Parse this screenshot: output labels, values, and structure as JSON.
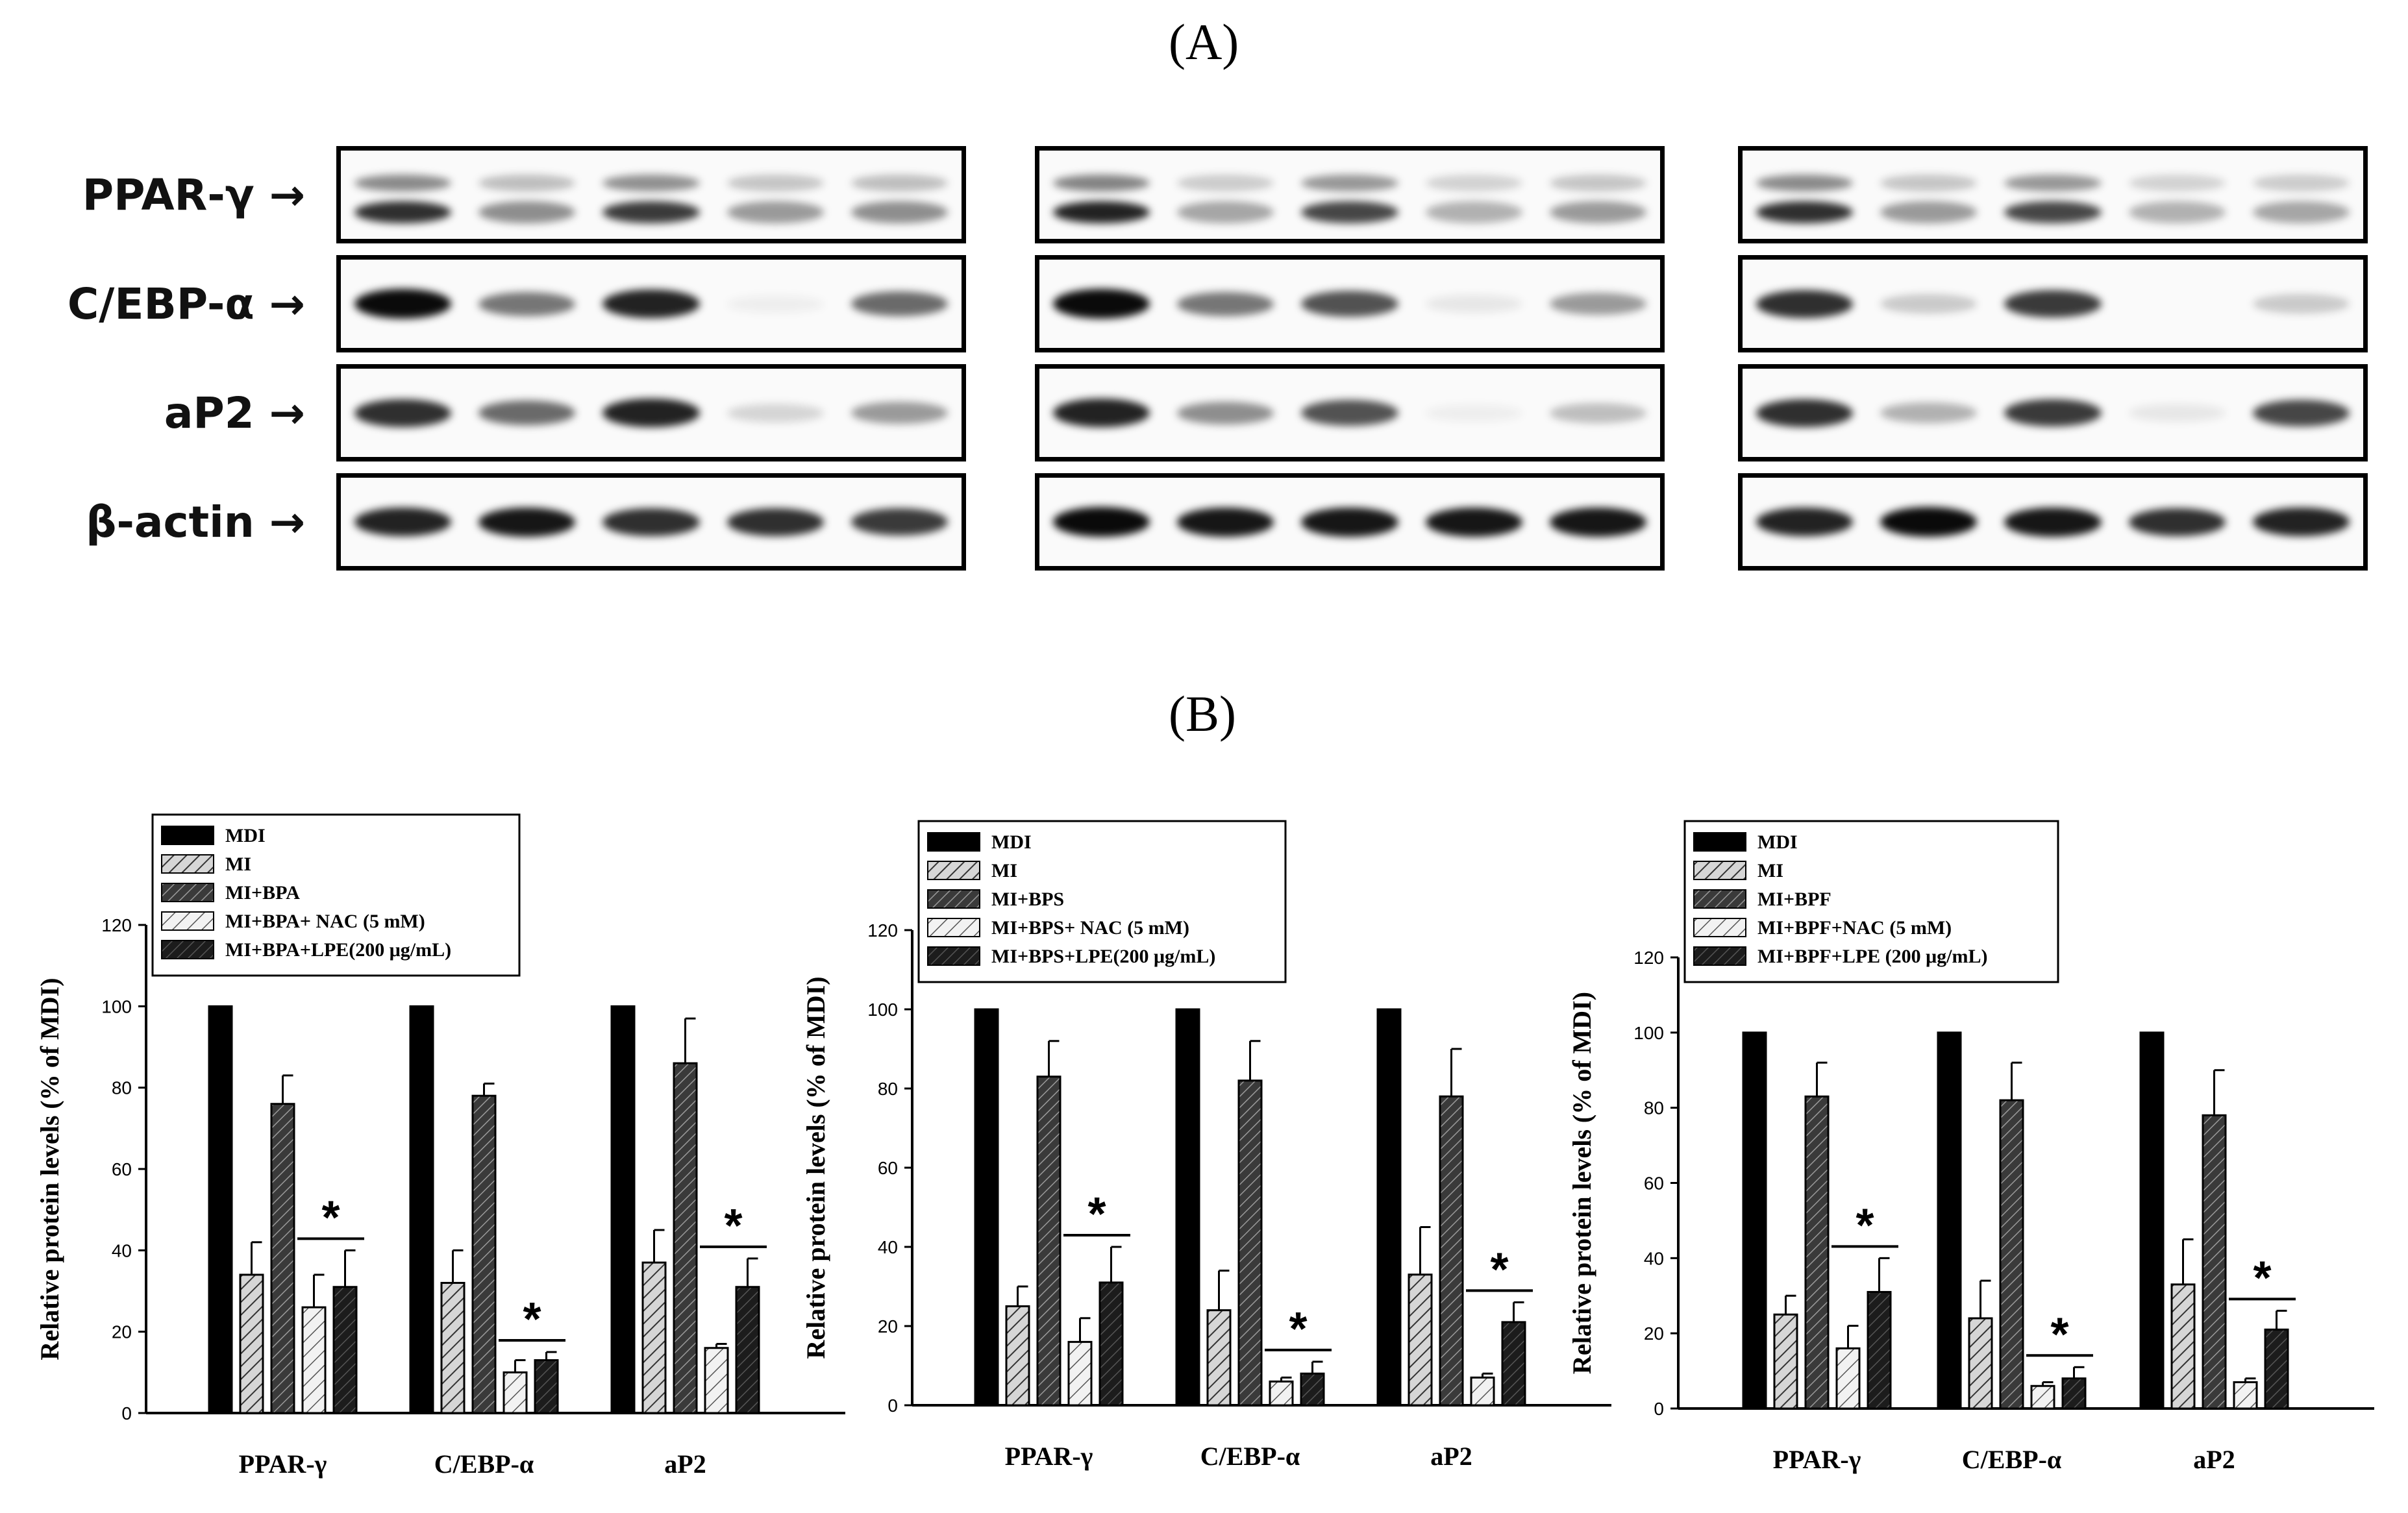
{
  "panels": {
    "a": "(A)",
    "b": "(B)"
  },
  "blot_rows": [
    "PPAR-γ →",
    "C/EBP-α →",
    "aP2 →",
    "β-actin →"
  ],
  "band_intensity": [
    [
      [
        0.85,
        0.45,
        0.8,
        0.4,
        0.45
      ],
      [
        0.9,
        0.35,
        0.75,
        0.3,
        0.4
      ],
      [
        0.85,
        0.4,
        0.75,
        0.3,
        0.35
      ]
    ],
    [
      [
        1.0,
        0.55,
        0.9,
        0.05,
        0.6
      ],
      [
        1.0,
        0.55,
        0.7,
        0.08,
        0.4
      ],
      [
        0.85,
        0.2,
        0.8,
        0.0,
        0.2
      ]
    ],
    [
      [
        0.85,
        0.6,
        0.9,
        0.15,
        0.4
      ],
      [
        0.9,
        0.45,
        0.7,
        0.05,
        0.25
      ],
      [
        0.85,
        0.3,
        0.8,
        0.08,
        0.75
      ]
    ],
    [
      [
        0.9,
        0.95,
        0.85,
        0.85,
        0.8
      ],
      [
        1.0,
        0.95,
        0.95,
        0.95,
        0.95
      ],
      [
        0.9,
        1.0,
        0.95,
        0.85,
        0.9
      ]
    ]
  ],
  "chart_data": [
    {
      "type": "bar",
      "categories": [
        "PPAR-γ",
        "C/EBP-α",
        "aP2"
      ],
      "ylabel": "Relative protein levels (% of MDI)",
      "ylim": [
        0,
        120
      ],
      "yticks": [
        "0",
        "20",
        "40",
        "60",
        "80",
        "100",
        "120"
      ],
      "legend": [
        "MDI",
        "MI",
        "MI+BPA",
        "MI+BPA+ NAC (5 mM)",
        "MI+BPA+LPE(200 μg/mL)"
      ],
      "legend_position": "top-left",
      "series": [
        {
          "name": "MDI",
          "values": [
            100,
            100,
            100
          ],
          "errors": [
            0,
            0,
            0
          ]
        },
        {
          "name": "MI",
          "values": [
            34,
            32,
            37
          ],
          "errors": [
            8,
            8,
            8
          ]
        },
        {
          "name": "MI+BPA",
          "values": [
            76,
            78,
            86
          ],
          "errors": [
            7,
            3,
            11
          ]
        },
        {
          "name": "MI+BPA+ NAC (5 mM)",
          "values": [
            26,
            10,
            16
          ],
          "errors": [
            8,
            3,
            1
          ]
        },
        {
          "name": "MI+BPA+LPE(200 μg/mL)",
          "values": [
            31,
            13,
            31
          ],
          "errors": [
            9,
            2,
            7
          ]
        }
      ],
      "significance": {
        "marker": "*",
        "between_series": [
          3,
          4
        ]
      }
    },
    {
      "type": "bar",
      "categories": [
        "PPAR-γ",
        "C/EBP-α",
        "aP2"
      ],
      "ylabel": "Relative protein levels (% of MDI)",
      "ylim": [
        0,
        120
      ],
      "yticks": [
        "0",
        "20",
        "40",
        "60",
        "80",
        "100",
        "120"
      ],
      "legend": [
        "MDI",
        "MI",
        "MI+BPS",
        "MI+BPS+ NAC (5 mM)",
        "MI+BPS+LPE(200 μg/mL)"
      ],
      "legend_position": "top-left",
      "series": [
        {
          "name": "MDI",
          "values": [
            100,
            100,
            100
          ],
          "errors": [
            0,
            0,
            0
          ]
        },
        {
          "name": "MI",
          "values": [
            25,
            24,
            33
          ],
          "errors": [
            5,
            10,
            12
          ]
        },
        {
          "name": "MI+BPS",
          "values": [
            83,
            82,
            78
          ],
          "errors": [
            9,
            10,
            12
          ]
        },
        {
          "name": "MI+BPS+ NAC (5 mM)",
          "values": [
            16,
            6,
            7
          ],
          "errors": [
            6,
            1,
            1
          ]
        },
        {
          "name": "MI+BPS+LPE(200 μg/mL)",
          "values": [
            31,
            8,
            21
          ],
          "errors": [
            9,
            3,
            5
          ]
        }
      ],
      "significance": {
        "marker": "*",
        "between_series": [
          3,
          4
        ]
      }
    },
    {
      "type": "bar",
      "categories": [
        "PPAR-γ",
        "C/EBP-α",
        "aP2"
      ],
      "ylabel": "Relative protein levels (% of MDI)",
      "ylim": [
        0,
        120
      ],
      "yticks": [
        "0",
        "20",
        "40",
        "60",
        "80",
        "100",
        "120"
      ],
      "legend": [
        "MDI",
        "MI",
        "MI+BPF",
        "MI+BPF+NAC (5 mM)",
        "MI+BPF+LPE (200 μg/mL)"
      ],
      "legend_position": "top-left",
      "series": [
        {
          "name": "MDI",
          "values": [
            100,
            100,
            100
          ],
          "errors": [
            0,
            0,
            0
          ]
        },
        {
          "name": "MI",
          "values": [
            25,
            24,
            33
          ],
          "errors": [
            5,
            10,
            12
          ]
        },
        {
          "name": "MI+BPF",
          "values": [
            83,
            82,
            78
          ],
          "errors": [
            9,
            10,
            12
          ]
        },
        {
          "name": "MI+BPF+NAC (5 mM)",
          "values": [
            16,
            6,
            7
          ],
          "errors": [
            6,
            1,
            1
          ]
        },
        {
          "name": "MI+BPF+LPE (200 μg/mL)",
          "values": [
            31,
            8,
            21
          ],
          "errors": [
            9,
            3,
            5
          ]
        }
      ],
      "significance": {
        "marker": "*",
        "between_series": [
          3,
          4
        ]
      }
    }
  ]
}
